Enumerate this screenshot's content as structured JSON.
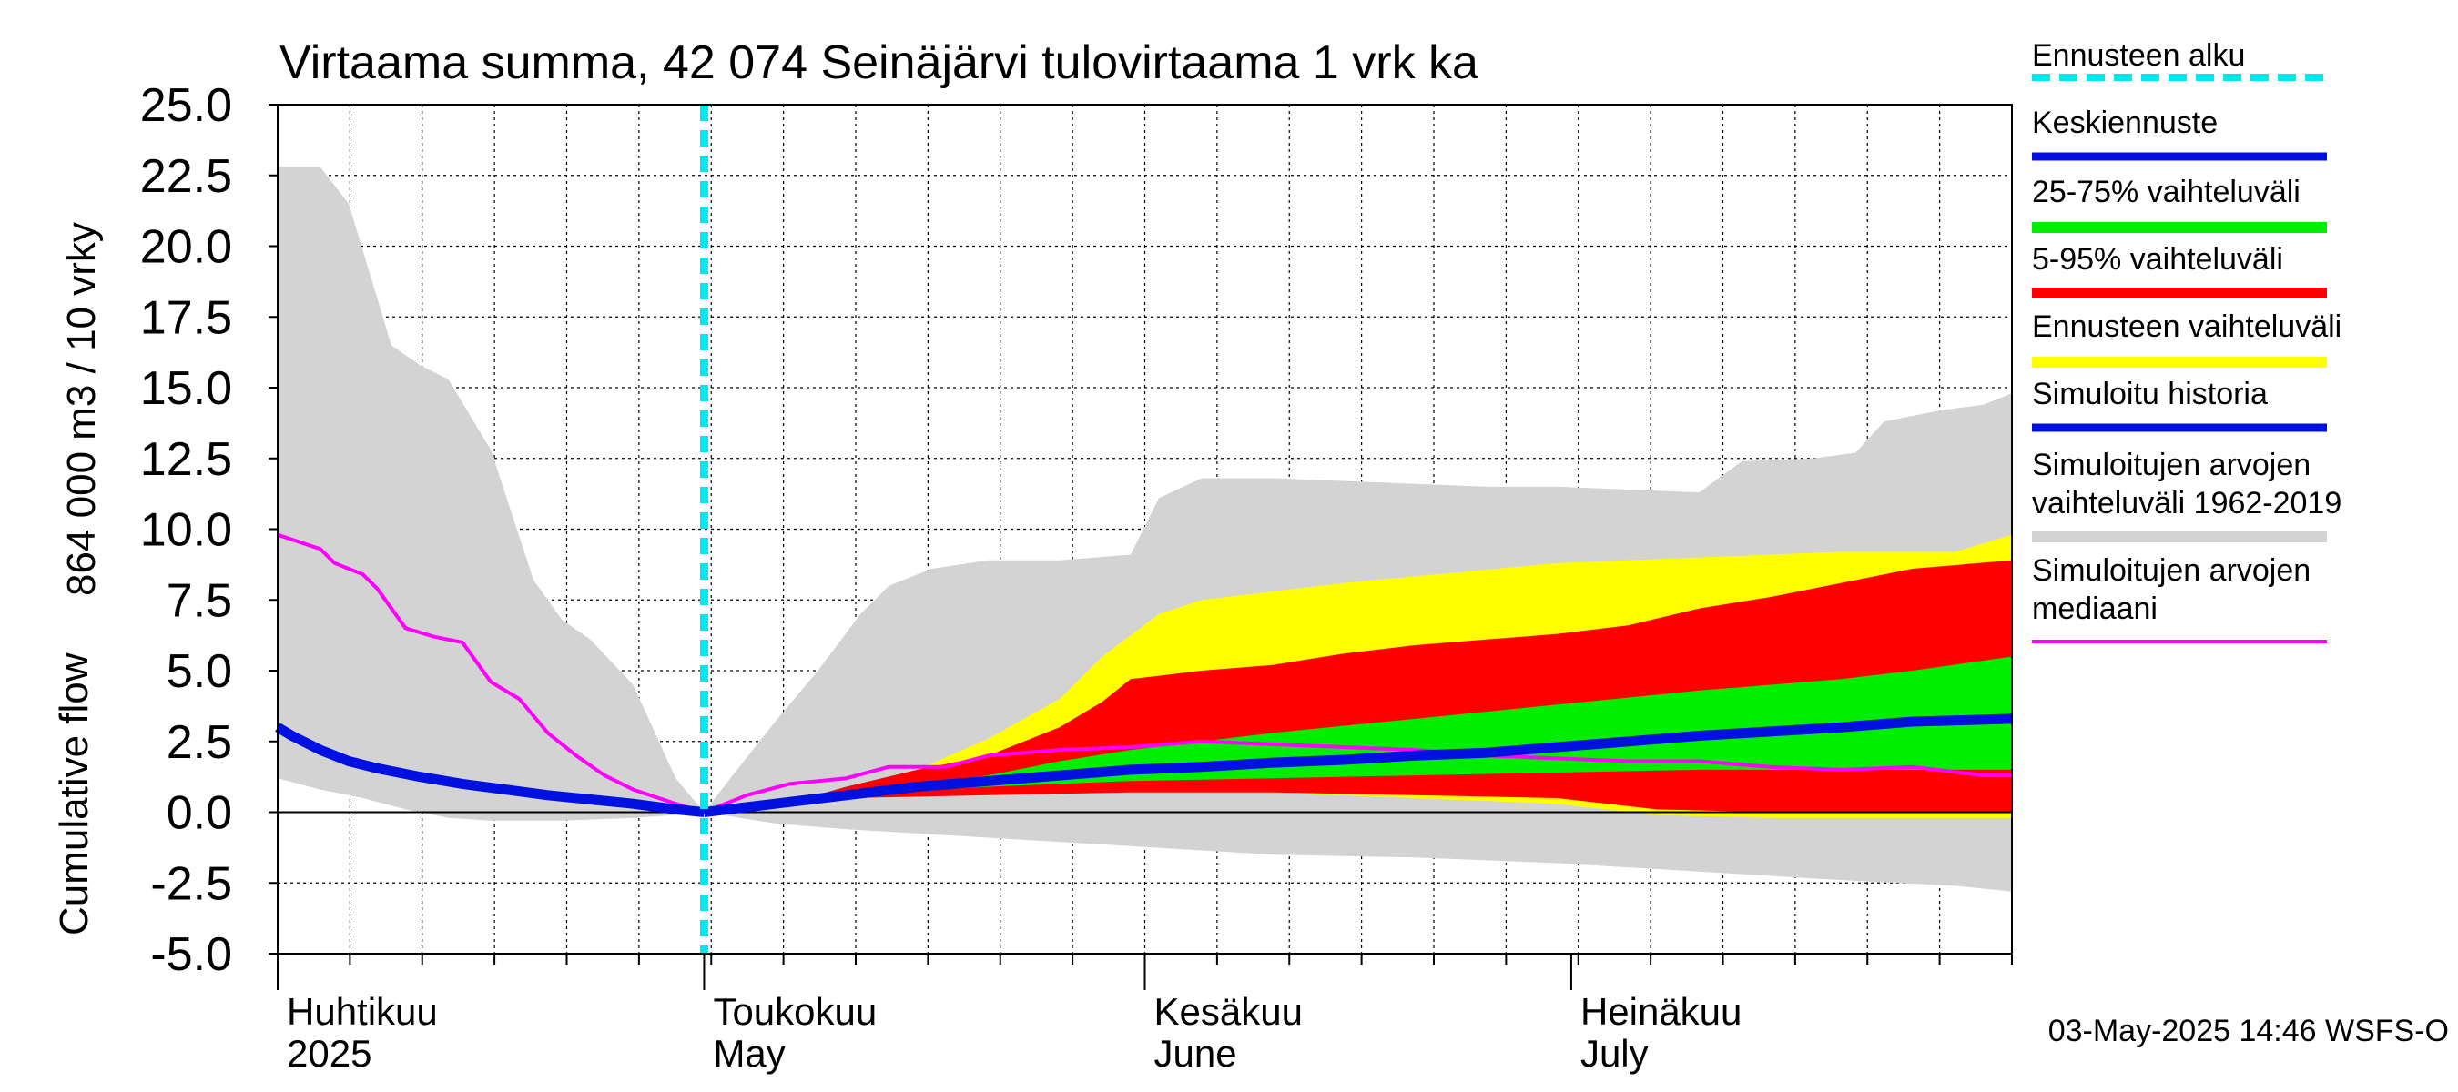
{
  "chart_data": {
    "type": "area",
    "title": "Virtaama summa, 42 074 Seinäjärvi tulovirtaama 1 vrk ka",
    "ylabel_line1": "864 000 m3 / 10 vrky",
    "ylabel_line2": "Cumulative flow",
    "ylim": [
      -5.0,
      25.0
    ],
    "y_ticks": [
      "25.0",
      "22.5",
      "20.0",
      "17.5",
      "15.0",
      "12.5",
      "10.0",
      "7.5",
      "5.0",
      "2.5",
      "0.0",
      "-2.5",
      "-5.0"
    ],
    "x_range_days": [
      0,
      122
    ],
    "forecast_start_day": 30,
    "month_labels": [
      {
        "day": 0,
        "fi": "Huhtikuu",
        "en": "2025"
      },
      {
        "day": 30,
        "fi": "Toukokuu",
        "en": "May"
      },
      {
        "day": 61,
        "fi": "Kesäkuu",
        "en": "June"
      },
      {
        "day": 91,
        "fi": "Heinäkuu",
        "en": "July"
      }
    ],
    "timestamp": "03-May-2025 14:46 WSFS-O",
    "colors": {
      "forecast_start": "#00e8f0",
      "mean_forecast": "#0010e0",
      "band_25_75": "#00ee00",
      "band_5_95": "#ff0000",
      "band_forecast": "#ffff00",
      "simulated_history": "#0010e0",
      "hist_range": "#d3d3d3",
      "hist_median": "#ff00ff"
    },
    "legend": [
      {
        "key": "forecast_start",
        "label1": "Ennusteen alku",
        "label2": ""
      },
      {
        "key": "mean_forecast",
        "label1": "Keskiennuste",
        "label2": ""
      },
      {
        "key": "band_25_75",
        "label1": "25-75% vaihteluväli",
        "label2": ""
      },
      {
        "key": "band_5_95",
        "label1": "5-95% vaihteluväli",
        "label2": ""
      },
      {
        "key": "band_forecast",
        "label1": "Ennusteen vaihteluväli",
        "label2": ""
      },
      {
        "key": "simulated_history",
        "label1": "Simuloitu historia",
        "label2": ""
      },
      {
        "key": "hist_range",
        "label1": "Simuloitujen arvojen",
        "label2": "vaihteluväli 1962-2019"
      },
      {
        "key": "hist_median",
        "label1": "Simuloitujen arvojen",
        "label2": "mediaani"
      }
    ],
    "series": {
      "hist_range_upper": [
        [
          0,
          22.8
        ],
        [
          3,
          22.8
        ],
        [
          5,
          21.5
        ],
        [
          8,
          16.5
        ],
        [
          10,
          15.8
        ],
        [
          12,
          15.3
        ],
        [
          15,
          12.8
        ],
        [
          18,
          8.2
        ],
        [
          20,
          6.8
        ],
        [
          22,
          6.1
        ],
        [
          25,
          4.5
        ],
        [
          28,
          1.2
        ],
        [
          30,
          0
        ],
        [
          32,
          1.3
        ],
        [
          35,
          3.2
        ],
        [
          38,
          5.0
        ],
        [
          41,
          7.0
        ],
        [
          43,
          8.0
        ],
        [
          46,
          8.6
        ],
        [
          50,
          8.9
        ],
        [
          55,
          8.9
        ],
        [
          60,
          9.1
        ],
        [
          62,
          11.1
        ],
        [
          65,
          11.8
        ],
        [
          70,
          11.8
        ],
        [
          80,
          11.6
        ],
        [
          85,
          11.5
        ],
        [
          90,
          11.5
        ],
        [
          95,
          11.4
        ],
        [
          100,
          11.3
        ],
        [
          103,
          12.4
        ],
        [
          108,
          12.5
        ],
        [
          111,
          12.7
        ],
        [
          113,
          13.8
        ],
        [
          117,
          14.2
        ],
        [
          120,
          14.4
        ],
        [
          122,
          14.8
        ]
      ],
      "hist_range_lower": [
        [
          0,
          1.2
        ],
        [
          3,
          0.8
        ],
        [
          6,
          0.5
        ],
        [
          9,
          0.1
        ],
        [
          12,
          -0.2
        ],
        [
          15,
          -0.3
        ],
        [
          20,
          -0.3
        ],
        [
          25,
          -0.2
        ],
        [
          28,
          -0.1
        ],
        [
          30,
          0
        ],
        [
          35,
          -0.4
        ],
        [
          40,
          -0.6
        ],
        [
          50,
          -0.9
        ],
        [
          60,
          -1.2
        ],
        [
          70,
          -1.5
        ],
        [
          80,
          -1.6
        ],
        [
          90,
          -1.8
        ],
        [
          100,
          -2.1
        ],
        [
          110,
          -2.4
        ],
        [
          118,
          -2.6
        ],
        [
          122,
          -2.8
        ]
      ],
      "band_forecast_upper": [
        [
          30,
          0
        ],
        [
          35,
          0.3
        ],
        [
          40,
          0.6
        ],
        [
          45,
          1.5
        ],
        [
          50,
          2.6
        ],
        [
          55,
          4.0
        ],
        [
          58,
          5.5
        ],
        [
          62,
          7.0
        ],
        [
          65,
          7.5
        ],
        [
          75,
          8.1
        ],
        [
          90,
          8.8
        ],
        [
          100,
          9.0
        ],
        [
          110,
          9.2
        ],
        [
          118,
          9.2
        ],
        [
          122,
          9.8
        ]
      ],
      "band_forecast_lower": [
        [
          30,
          0
        ],
        [
          40,
          0.6
        ],
        [
          50,
          0.7
        ],
        [
          60,
          0.7
        ],
        [
          70,
          0.7
        ],
        [
          80,
          0.5
        ],
        [
          90,
          0.3
        ],
        [
          97,
          -0.1
        ],
        [
          105,
          -0.2
        ],
        [
          110,
          -0.2
        ],
        [
          122,
          -0.2
        ]
      ],
      "band_5_95_upper": [
        [
          30,
          0
        ],
        [
          35,
          0.2
        ],
        [
          40,
          0.9
        ],
        [
          45,
          1.5
        ],
        [
          50,
          2.0
        ],
        [
          55,
          3.0
        ],
        [
          58,
          3.9
        ],
        [
          60,
          4.7
        ],
        [
          65,
          5.0
        ],
        [
          70,
          5.2
        ],
        [
          75,
          5.6
        ],
        [
          80,
          5.9
        ],
        [
          85,
          6.1
        ],
        [
          90,
          6.3
        ],
        [
          95,
          6.6
        ],
        [
          100,
          7.2
        ],
        [
          105,
          7.6
        ],
        [
          110,
          8.1
        ],
        [
          115,
          8.6
        ],
        [
          122,
          8.9
        ]
      ],
      "band_5_95_lower": [
        [
          30,
          0
        ],
        [
          40,
          0.5
        ],
        [
          50,
          0.6
        ],
        [
          60,
          0.7
        ],
        [
          70,
          0.7
        ],
        [
          80,
          0.6
        ],
        [
          90,
          0.5
        ],
        [
          97,
          0.1
        ],
        [
          105,
          0
        ],
        [
          110,
          0
        ],
        [
          122,
          0
        ]
      ],
      "band_25_75_upper": [
        [
          30,
          0
        ],
        [
          40,
          0.7
        ],
        [
          50,
          1.3
        ],
        [
          55,
          1.8
        ],
        [
          60,
          2.2
        ],
        [
          65,
          2.5
        ],
        [
          70,
          2.8
        ],
        [
          80,
          3.3
        ],
        [
          90,
          3.8
        ],
        [
          100,
          4.3
        ],
        [
          110,
          4.7
        ],
        [
          115,
          5.0
        ],
        [
          122,
          5.5
        ]
      ],
      "band_25_75_lower": [
        [
          30,
          0
        ],
        [
          40,
          0.6
        ],
        [
          50,
          0.9
        ],
        [
          60,
          1.1
        ],
        [
          70,
          1.2
        ],
        [
          80,
          1.3
        ],
        [
          90,
          1.4
        ],
        [
          100,
          1.5
        ],
        [
          110,
          1.5
        ],
        [
          122,
          1.5
        ]
      ],
      "mean_forecast": [
        [
          30,
          0
        ],
        [
          35,
          0.3
        ],
        [
          40,
          0.6
        ],
        [
          45,
          0.9
        ],
        [
          50,
          1.1
        ],
        [
          55,
          1.3
        ],
        [
          60,
          1.5
        ],
        [
          65,
          1.6
        ],
        [
          70,
          1.75
        ],
        [
          75,
          1.85
        ],
        [
          80,
          2.0
        ],
        [
          85,
          2.1
        ],
        [
          90,
          2.3
        ],
        [
          95,
          2.5
        ],
        [
          100,
          2.7
        ],
        [
          105,
          2.85
        ],
        [
          110,
          3.0
        ],
        [
          115,
          3.2
        ],
        [
          122,
          3.3
        ]
      ],
      "simulated_history": [
        [
          0,
          3.0
        ],
        [
          1,
          2.7
        ],
        [
          3,
          2.2
        ],
        [
          5,
          1.8
        ],
        [
          7,
          1.55
        ],
        [
          10,
          1.25
        ],
        [
          13,
          1.0
        ],
        [
          16,
          0.8
        ],
        [
          19,
          0.6
        ],
        [
          22,
          0.45
        ],
        [
          25,
          0.3
        ],
        [
          28,
          0.1
        ],
        [
          30,
          0
        ]
      ],
      "hist_median": [
        [
          0,
          9.8
        ],
        [
          3,
          9.3
        ],
        [
          4,
          8.8
        ],
        [
          6,
          8.4
        ],
        [
          7,
          7.9
        ],
        [
          9,
          6.5
        ],
        [
          11,
          6.2
        ],
        [
          13,
          6.0
        ],
        [
          15,
          4.6
        ],
        [
          17,
          4.0
        ],
        [
          19,
          2.8
        ],
        [
          21,
          2.0
        ],
        [
          23,
          1.3
        ],
        [
          25,
          0.8
        ],
        [
          28,
          0.3
        ],
        [
          30,
          0
        ],
        [
          33,
          0.6
        ],
        [
          36,
          1.0
        ],
        [
          40,
          1.2
        ],
        [
          43,
          1.6
        ],
        [
          47,
          1.6
        ],
        [
          50,
          2.0
        ],
        [
          55,
          2.2
        ],
        [
          60,
          2.3
        ],
        [
          65,
          2.5
        ],
        [
          70,
          2.4
        ],
        [
          75,
          2.3
        ],
        [
          80,
          2.2
        ],
        [
          85,
          2.0
        ],
        [
          90,
          1.9
        ],
        [
          95,
          1.8
        ],
        [
          100,
          1.8
        ],
        [
          105,
          1.6
        ],
        [
          110,
          1.5
        ],
        [
          115,
          1.6
        ],
        [
          120,
          1.3
        ],
        [
          122,
          1.3
        ]
      ]
    }
  }
}
